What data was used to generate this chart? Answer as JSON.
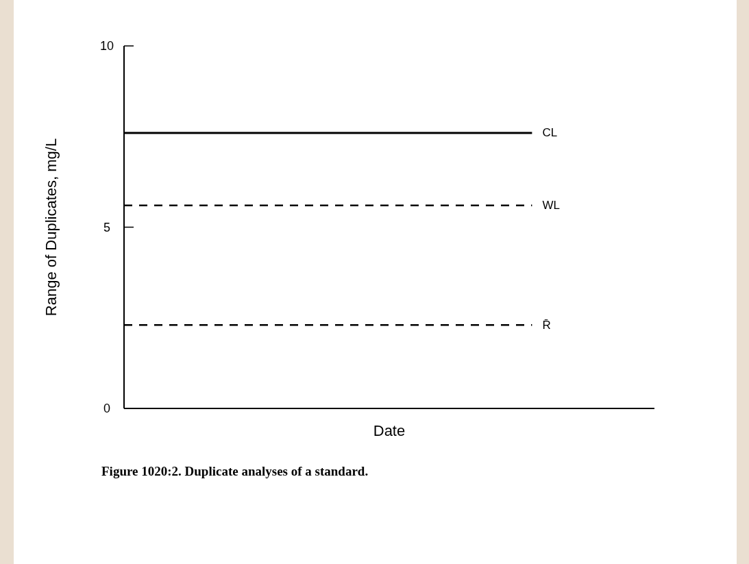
{
  "chart_data": {
    "type": "line",
    "xlabel": "Date",
    "ylabel": "Range of Duplicates, mg/L",
    "annotations": [
      "Figure 1020:2. Duplicate analyses of a standard."
    ],
    "ylim": [
      0,
      10
    ],
    "yticks": [
      0,
      5,
      10
    ],
    "tick_labels": "y",
    "marker": "none",
    "categories": [
      null,
      null,
      null,
      null,
      null,
      null,
      null,
      null,
      null,
      null,
      null,
      null,
      null,
      null
    ],
    "series": [
      {
        "name": "CL",
        "color": "#000000",
        "line_style": "solid",
        "values": [
          7.6,
          7.6,
          7.6,
          7.6,
          7.6,
          7.6,
          7.6,
          7.6,
          7.6,
          7.6,
          7.6,
          null,
          null,
          null
        ]
      },
      {
        "name": "WL",
        "color": "#000000",
        "line_style": "dashed",
        "values": [
          5.6,
          5.6,
          5.6,
          5.6,
          5.6,
          5.6,
          5.6,
          5.6,
          5.6,
          5.6,
          5.6,
          null,
          null,
          null
        ]
      },
      {
        "name": "R̄",
        "color": "#000000",
        "line_style": "dashed",
        "values": [
          2.3,
          2.3,
          2.3,
          2.3,
          2.3,
          2.3,
          2.3,
          2.3,
          2.3,
          2.3,
          2.3,
          null,
          null,
          null
        ]
      }
    ]
  }
}
